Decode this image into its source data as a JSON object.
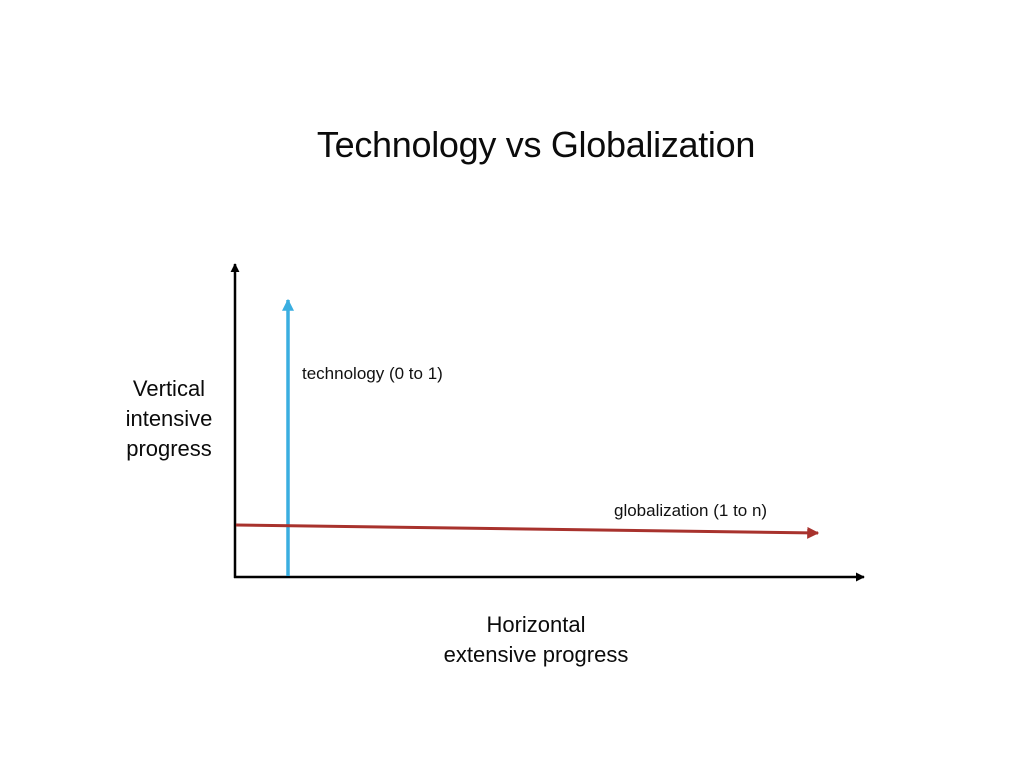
{
  "title": "Technology vs Globalization",
  "y_axis": {
    "lines": [
      "Vertical",
      "intensive",
      "progress"
    ]
  },
  "x_axis": {
    "lines": [
      "Horizontal",
      "extensive progress"
    ]
  },
  "arrows": {
    "technology": {
      "label": "technology (0 to 1)",
      "direction": "up",
      "color": "#3aaee0"
    },
    "globalization": {
      "label": "globalization (1 to n)",
      "direction": "right",
      "color": "#a8322d"
    }
  },
  "colors": {
    "axes": "#000000",
    "text": "#111111"
  }
}
